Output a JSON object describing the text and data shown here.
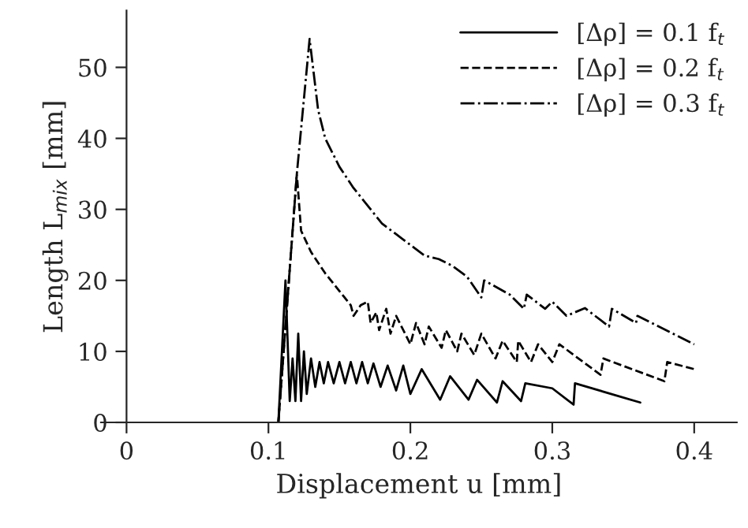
{
  "chart_data": {
    "type": "line",
    "xlabel": "Displacement u [mm]",
    "ylabel": "Length L$_{mix}$ [mm]",
    "xlim": [
      -0.018,
      0.43
    ],
    "ylim": [
      0,
      58
    ],
    "xticks": [
      0,
      0.1,
      0.2,
      0.3,
      0.4
    ],
    "yticks": [
      0,
      10,
      20,
      30,
      40,
      50
    ],
    "grid": false,
    "legend": "top right",
    "marker": "none",
    "series": [
      {
        "name": "[Δρ] = 0.1 f$_{t}$",
        "color": "#000000",
        "line_style": "solid",
        "x": [
          0.107,
          0.112,
          0.115,
          0.117,
          0.119,
          0.121,
          0.123,
          0.125,
          0.127,
          0.13,
          0.133,
          0.136,
          0.139,
          0.142,
          0.146,
          0.15,
          0.154,
          0.158,
          0.162,
          0.166,
          0.17,
          0.174,
          0.179,
          0.184,
          0.19,
          0.195,
          0.2,
          0.208,
          0.221,
          0.228,
          0.241,
          0.247,
          0.261,
          0.265,
          0.278,
          0.281,
          0.3,
          0.315,
          0.316,
          0.362
        ],
        "values": [
          0,
          20,
          3,
          9,
          3,
          12.5,
          3,
          10,
          4,
          9,
          5,
          8.5,
          5.5,
          8.5,
          5.5,
          8.5,
          5.5,
          8.5,
          5.5,
          8.5,
          5.5,
          8.3,
          5,
          8,
          4.5,
          8,
          4,
          7.5,
          3.2,
          6.5,
          3.2,
          6,
          2.8,
          5.8,
          3,
          5.5,
          4.8,
          2.5,
          5.5,
          2.8
        ]
      },
      {
        "name": "[Δρ] = 0.2 f$_{t}$",
        "color": "#000000",
        "line_style": "dashed",
        "x": [
          0.107,
          0.12,
          0.123,
          0.13,
          0.14,
          0.15,
          0.158,
          0.16,
          0.165,
          0.17,
          0.172,
          0.176,
          0.178,
          0.183,
          0.186,
          0.19,
          0.2,
          0.204,
          0.21,
          0.213,
          0.222,
          0.225,
          0.233,
          0.236,
          0.245,
          0.25,
          0.26,
          0.265,
          0.275,
          0.276,
          0.285,
          0.29,
          0.3,
          0.305,
          0.334,
          0.336,
          0.379,
          0.381,
          0.4
        ],
        "values": [
          0,
          35,
          27,
          24,
          21,
          18.5,
          16.5,
          15,
          16.5,
          17,
          14,
          15.5,
          13,
          16,
          12.5,
          15,
          11,
          14,
          11,
          13.5,
          10.5,
          13,
          10,
          12.5,
          9.5,
          12.5,
          9,
          11.5,
          8.5,
          11.5,
          8.5,
          11,
          8.5,
          11,
          6.7,
          9,
          5.8,
          8.5,
          7.5
        ]
      },
      {
        "name": "[Δρ] = 0.3 f$_{t}$",
        "color": "#000000",
        "line_style": "dashdot",
        "x": [
          0.107,
          0.12,
          0.129,
          0.135,
          0.14,
          0.15,
          0.16,
          0.17,
          0.18,
          0.19,
          0.2,
          0.21,
          0.22,
          0.23,
          0.24,
          0.25,
          0.252,
          0.27,
          0.28,
          0.282,
          0.295,
          0.3,
          0.31,
          0.323,
          0.34,
          0.342,
          0.359,
          0.36,
          0.4
        ],
        "values": [
          0,
          35,
          54,
          44,
          40,
          36,
          33,
          30.5,
          28,
          26.5,
          25,
          23.5,
          23,
          22,
          20.5,
          17.6,
          20,
          18,
          16,
          18,
          16,
          17,
          15,
          16.1,
          13.5,
          16,
          14,
          15,
          11
        ]
      }
    ]
  }
}
